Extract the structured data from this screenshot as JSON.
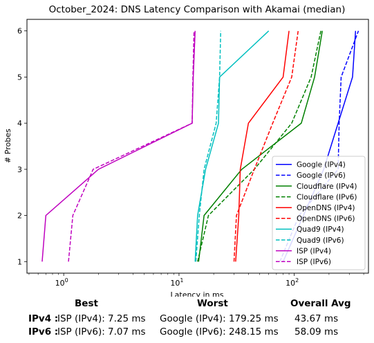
{
  "chart_data": {
    "type": "line",
    "title": "October_2024: DNS Latency Comparison with Akamai (median)",
    "xlabel": "Latency in ms",
    "ylabel": "# Probes",
    "xscale": "log",
    "xlim": [
      0.48,
      440
    ],
    "ylim": [
      0.75,
      6.25
    ],
    "xticks": [
      {
        "value": 1,
        "label": "10^0"
      },
      {
        "value": 10,
        "label": "10^1"
      },
      {
        "value": 100,
        "label": "10^2"
      }
    ],
    "yticks": [
      1,
      2,
      3,
      4,
      5,
      6
    ],
    "grid": false,
    "legend_position": "lower-right",
    "series": [
      {
        "name": "Google (IPv4)",
        "color": "#0000ff",
        "dash": false,
        "points": [
          [
            80,
            1
          ],
          [
            120,
            2
          ],
          [
            180,
            3
          ],
          [
            240,
            4
          ],
          [
            320,
            5
          ],
          [
            340,
            6
          ]
        ]
      },
      {
        "name": "Google (IPv6)",
        "color": "#0000ff",
        "dash": true,
        "points": [
          [
            75,
            1
          ],
          [
            110,
            2
          ],
          [
            240,
            3
          ],
          [
            245,
            4
          ],
          [
            255,
            5
          ],
          [
            360,
            6
          ]
        ]
      },
      {
        "name": "Cloudflare (IPv4)",
        "color": "#008000",
        "dash": false,
        "points": [
          [
            14.8,
            1
          ],
          [
            16.5,
            2
          ],
          [
            35,
            3
          ],
          [
            115,
            4
          ],
          [
            150,
            5
          ],
          [
            175,
            6
          ]
        ]
      },
      {
        "name": "Cloudflare (IPv6)",
        "color": "#008000",
        "dash": true,
        "points": [
          [
            14.5,
            1
          ],
          [
            18,
            2
          ],
          [
            45,
            3
          ],
          [
            95,
            4
          ],
          [
            140,
            5
          ],
          [
            170,
            6
          ]
        ]
      },
      {
        "name": "OpenDNS (IPv4)",
        "color": "#ff0000",
        "dash": false,
        "points": [
          [
            31,
            1
          ],
          [
            33,
            2
          ],
          [
            34,
            3
          ],
          [
            40,
            4
          ],
          [
            80,
            5
          ],
          [
            90,
            6
          ]
        ]
      },
      {
        "name": "OpenDNS (IPv6)",
        "color": "#ff0000",
        "dash": true,
        "points": [
          [
            30,
            1
          ],
          [
            31.5,
            2
          ],
          [
            45,
            3
          ],
          [
            65,
            4
          ],
          [
            95,
            5
          ],
          [
            108,
            6
          ]
        ]
      },
      {
        "name": "Quad9 (IPv4)",
        "color": "#00bfbf",
        "dash": false,
        "points": [
          [
            13.8,
            1
          ],
          [
            14.5,
            2
          ],
          [
            17,
            3
          ],
          [
            22,
            4
          ],
          [
            22.5,
            5
          ],
          [
            60,
            6
          ]
        ]
      },
      {
        "name": "Quad9 (IPv6)",
        "color": "#00bfbf",
        "dash": true,
        "points": [
          [
            14,
            1
          ],
          [
            15,
            2
          ],
          [
            16.5,
            3
          ],
          [
            21,
            4
          ],
          [
            22.5,
            5
          ],
          [
            23,
            6
          ]
        ]
      },
      {
        "name": "ISP (IPv4)",
        "color": "#bf00bf",
        "dash": false,
        "points": [
          [
            0.65,
            1
          ],
          [
            0.7,
            2
          ],
          [
            2,
            3
          ],
          [
            13,
            4
          ],
          [
            13.3,
            5
          ],
          [
            13.8,
            6
          ]
        ]
      },
      {
        "name": "ISP (IPv6)",
        "color": "#bf00bf",
        "dash": true,
        "points": [
          [
            1.1,
            1
          ],
          [
            1.2,
            2
          ],
          [
            1.8,
            3
          ],
          [
            13,
            4
          ],
          [
            13.2,
            5
          ],
          [
            13.5,
            6
          ]
        ]
      }
    ]
  },
  "summary": {
    "headers": {
      "best": "Best",
      "worst": "Worst",
      "avg": "Overall Avg"
    },
    "rows": [
      {
        "label": "IPv4 :",
        "best": "ISP (IPv4): 7.25 ms",
        "worst": "Google (IPv4): 179.25 ms",
        "avg": "43.67 ms"
      },
      {
        "label": "IPv6 :",
        "best": "ISP (IPv6): 7.07 ms",
        "worst": "Google (IPv6): 248.15 ms",
        "avg": "58.09 ms"
      }
    ]
  }
}
